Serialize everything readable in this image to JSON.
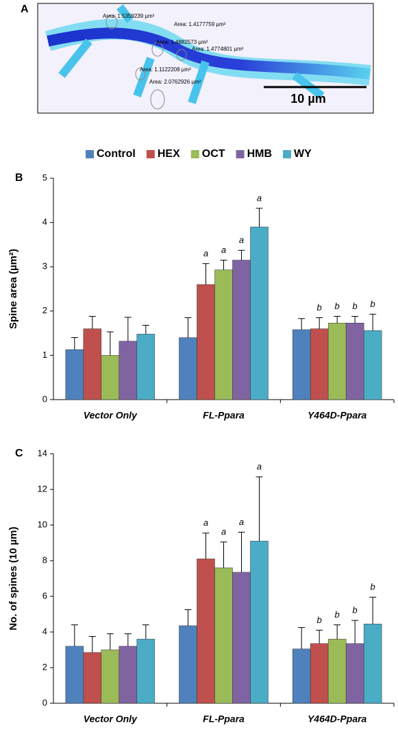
{
  "panel_a": {
    "label": "A",
    "areas": [
      "Area: 1.5359239 µm²",
      "Area: 1.4177759 µm²",
      "Area: 1.4882573 µm²",
      "Area: 1.4774801 µm²",
      "Area: 1.1122208 µm²",
      "Area: 2.0762926 µm²"
    ],
    "scale_bar": "10 µm"
  },
  "chart_data": [
    {
      "type": "bar",
      "panel": "B",
      "y_label": "Spine area (µm²)",
      "legend": true,
      "categories": [
        "Vector Only",
        "FL-Ppara",
        "Y464D-Ppara"
      ],
      "ylim": [
        0,
        5
      ],
      "yticks": [
        0,
        1,
        2,
        3,
        4,
        5
      ],
      "series": [
        {
          "name": "Control",
          "color": "#4f81bd",
          "values": [
            1.13,
            1.4,
            1.58
          ],
          "errors": [
            0.27,
            0.45,
            0.25
          ],
          "letters": [
            null,
            null,
            null
          ]
        },
        {
          "name": "HEX",
          "color": "#c0504d",
          "values": [
            1.6,
            2.6,
            1.6
          ],
          "errors": [
            0.28,
            0.47,
            0.25
          ],
          "letters": [
            null,
            "a",
            "b"
          ]
        },
        {
          "name": "OCT",
          "color": "#9bbb59",
          "values": [
            1.0,
            2.93,
            1.73
          ],
          "errors": [
            0.53,
            0.22,
            0.15
          ],
          "letters": [
            null,
            "a",
            "b"
          ]
        },
        {
          "name": "HMB",
          "color": "#8064a2",
          "values": [
            1.32,
            3.15,
            1.73
          ],
          "errors": [
            0.54,
            0.22,
            0.15
          ],
          "letters": [
            null,
            "a",
            "b"
          ]
        },
        {
          "name": "WY",
          "color": "#4bacc6",
          "values": [
            1.48,
            3.9,
            1.56
          ],
          "errors": [
            0.2,
            0.42,
            0.37
          ],
          "letters": [
            null,
            "a",
            "b"
          ]
        }
      ]
    },
    {
      "type": "bar",
      "panel": "C",
      "y_label": "No. of spines (10 µm)",
      "legend": false,
      "categories": [
        "Vector Only",
        "FL-Ppara",
        "Y464D-Ppara"
      ],
      "ylim": [
        0,
        14
      ],
      "yticks": [
        0,
        2,
        4,
        6,
        8,
        10,
        12,
        14
      ],
      "series": [
        {
          "name": "Control",
          "color": "#4f81bd",
          "values": [
            3.2,
            4.35,
            3.05
          ],
          "errors": [
            1.2,
            0.9,
            1.2
          ],
          "letters": [
            null,
            null,
            null
          ]
        },
        {
          "name": "HEX",
          "color": "#c0504d",
          "values": [
            2.85,
            8.1,
            3.35
          ],
          "errors": [
            0.9,
            1.45,
            0.75
          ],
          "letters": [
            null,
            "a",
            "b"
          ]
        },
        {
          "name": "OCT",
          "color": "#9bbb59",
          "values": [
            3.0,
            7.6,
            3.6
          ],
          "errors": [
            0.9,
            1.45,
            0.8
          ],
          "letters": [
            null,
            "a",
            "b"
          ]
        },
        {
          "name": "HMB",
          "color": "#8064a2",
          "values": [
            3.2,
            7.35,
            3.35
          ],
          "errors": [
            0.7,
            2.25,
            1.3
          ],
          "letters": [
            null,
            "a",
            "b"
          ]
        },
        {
          "name": "WY",
          "color": "#4bacc6",
          "values": [
            3.6,
            9.1,
            4.45
          ],
          "errors": [
            0.8,
            3.6,
            1.5
          ],
          "letters": [
            null,
            "a",
            "b"
          ]
        }
      ]
    }
  ]
}
